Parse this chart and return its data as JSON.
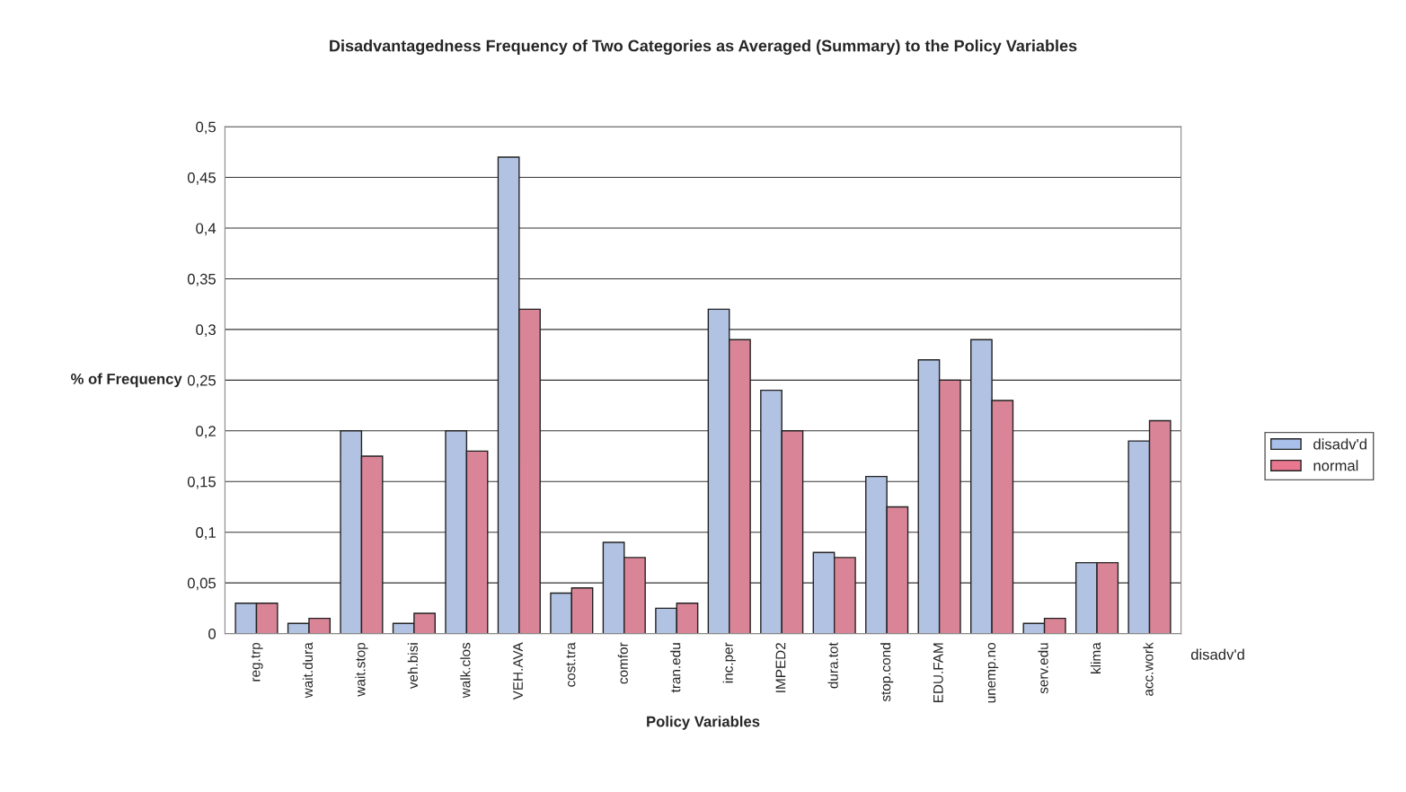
{
  "chart_data": {
    "type": "bar",
    "title": "Disadvantagedness Frequency of Two Categories as Averaged (Summary) to the Policy Variables",
    "xlabel": "Policy Variables",
    "ylabel": "% of Frequency",
    "categories": [
      "reg.trp",
      "wait.dura",
      "wait.stop",
      "veh.bisi",
      "walk.clos",
      "VEH.AVA",
      "cost.tra",
      "comfor",
      "tran.edu",
      "inc.per",
      "IMPED2",
      "dura.tot",
      "stop.cond",
      "EDU.FAM",
      "unemp.no",
      "serv.edu",
      "klima",
      "acc.work"
    ],
    "series": [
      {
        "name": "disadv'd",
        "color": "#a9c0ea",
        "values": [
          0.03,
          0.01,
          0.2,
          0.01,
          0.2,
          0.47,
          0.04,
          0.09,
          0.025,
          0.32,
          0.24,
          0.08,
          0.155,
          0.27,
          0.29,
          0.01,
          0.07,
          0.19
        ]
      },
      {
        "name": "normal",
        "color": "#e8778f",
        "values": [
          0.03,
          0.015,
          0.175,
          0.02,
          0.18,
          0.32,
          0.045,
          0.075,
          0.03,
          0.29,
          0.2,
          0.075,
          0.125,
          0.25,
          0.23,
          0.015,
          0.07,
          0.21
        ]
      }
    ],
    "ylim": [
      0,
      0.5
    ],
    "yticks": [
      0,
      {
        "value": 0.05,
        "label": "0,05"
      },
      {
        "value": 0.1,
        "label": "0,1"
      },
      {
        "value": 0.15,
        "label": "0,15"
      },
      {
        "value": 0.2,
        "label": "0,2"
      },
      {
        "value": 0.25,
        "label": "0,25"
      },
      {
        "value": 0.3,
        "label": "0,3"
      },
      {
        "value": 0.35,
        "label": "0,35"
      },
      {
        "value": 0.4,
        "label": "0,4"
      },
      {
        "value": 0.45,
        "label": "0,45"
      },
      {
        "value": 0.5,
        "label": "0,5"
      }
    ],
    "grid": "y",
    "legend": "right",
    "annotations": [
      "disadv'd"
    ]
  }
}
